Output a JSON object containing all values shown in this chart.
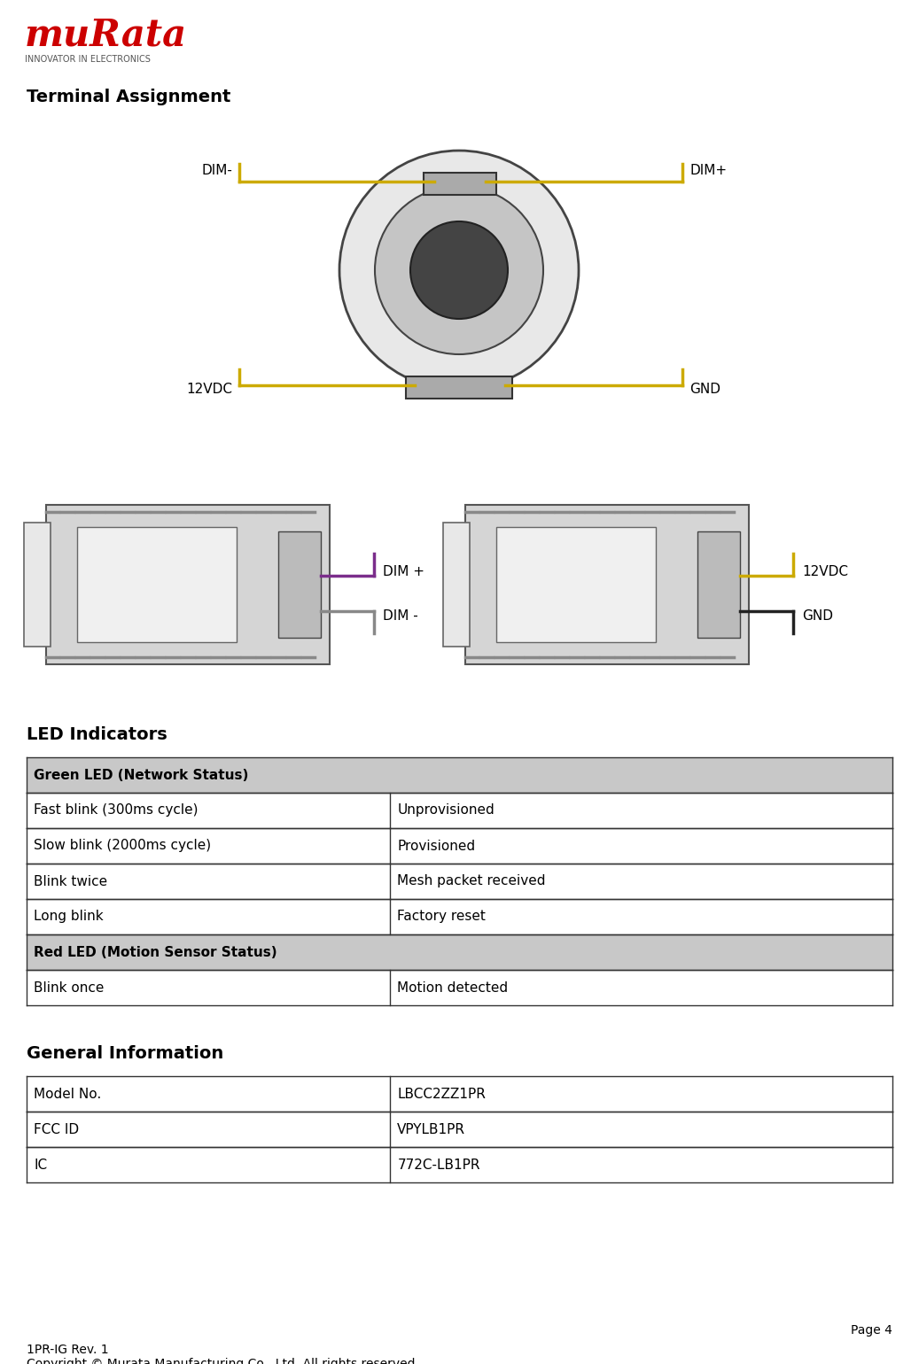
{
  "page_bg": "#ffffff",
  "title_terminal": "Terminal Assignment",
  "title_led": "LED Indicators",
  "title_general": "General Information",
  "led_table": {
    "rows_green_header": "Green LED (Network Status)",
    "rows_green": [
      [
        "Fast blink (300ms cycle)",
        "Unprovisioned"
      ],
      [
        "Slow blink (2000ms cycle)",
        "Provisioned"
      ],
      [
        "Blink twice",
        "Mesh packet received"
      ],
      [
        "Long blink",
        "Factory reset"
      ]
    ],
    "rows_red_header": "Red LED (Motion Sensor Status)",
    "rows_red": [
      [
        "Blink once",
        "Motion detected"
      ]
    ]
  },
  "gen_table": {
    "rows": [
      [
        "Model No.",
        "LBCC2ZZ1PR"
      ],
      [
        "FCC ID",
        "VPYLB1PR"
      ],
      [
        "IC",
        "772C-LB1PR"
      ]
    ]
  },
  "footer_left1": "1PR-IG Rev. 1",
  "footer_left2": "Copyright © Murata Manufacturing Co., Ltd. All rights reserved.",
  "footer_right": "Page 4",
  "murata_red": "#cc0000",
  "table_border": "#333333",
  "header_bg": "#c8c8c8",
  "row_bg_white": "#ffffff",
  "text_color": "#000000",
  "col_split": 0.42,
  "label_dim_minus_top": "DIM-",
  "label_dim_plus_top": "DIM+",
  "label_12vdc_top": "12VDC",
  "label_gnd_top": "GND",
  "label_dim_plus_left": "DIM +",
  "label_dim_minus_left": "DIM -",
  "label_12vdc_right": "12VDC",
  "label_gnd_right": "GND"
}
